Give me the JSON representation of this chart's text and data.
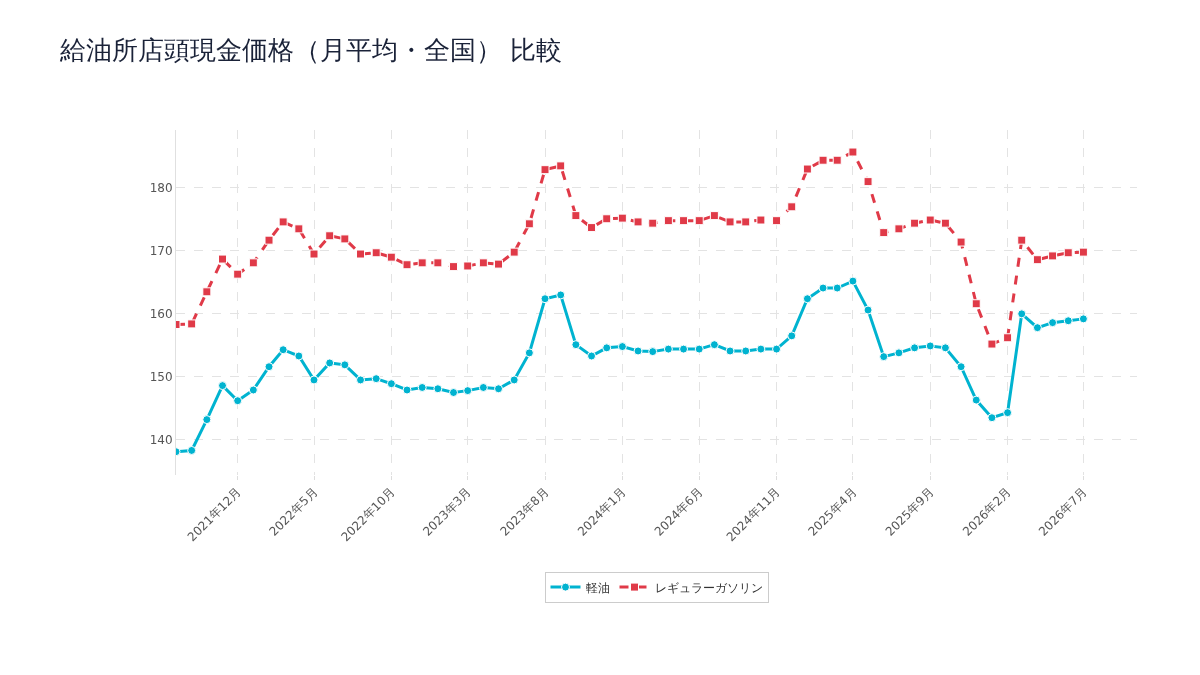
{
  "chart_data": {
    "type": "line",
    "title": "給油所店頭現金価格（月平均・全国） 比較",
    "x": [
      "2021-08",
      "2021-09",
      "2021-10",
      "2021-11",
      "2021-12",
      "2022-01",
      "2022-02",
      "2022-03",
      "2022-04",
      "2022-05",
      "2022-06",
      "2022-07",
      "2022-08",
      "2022-09",
      "2022-10",
      "2022-11",
      "2022-12",
      "2023-01",
      "2023-02",
      "2023-03",
      "2023-04",
      "2023-05",
      "2023-06",
      "2023-07",
      "2023-08",
      "2023-09",
      "2023-10",
      "2023-11",
      "2023-12",
      "2024-01",
      "2024-02",
      "2024-03",
      "2024-04",
      "2024-05",
      "2024-06",
      "2024-07",
      "2024-08",
      "2024-09",
      "2024-10",
      "2024-11",
      "2024-12",
      "2025-01",
      "2025-02",
      "2025-03",
      "2025-04",
      "2025-05",
      "2025-06",
      "2025-07",
      "2025-08",
      "2025-09",
      "2025-10",
      "2025-11",
      "2025-12",
      "2026-01",
      "2026-02",
      "2026-03",
      "2026-04",
      "2026-05",
      "2026-06",
      "2026-07"
    ],
    "series": [
      {
        "name": "軽油",
        "color": "#00b3d0",
        "marker": "circle",
        "line_style": "solid",
        "values": [
          138.1,
          138.3,
          143.2,
          148.6,
          146.2,
          147.9,
          151.6,
          154.3,
          153.3,
          149.5,
          152.2,
          151.9,
          149.5,
          149.7,
          148.9,
          147.9,
          148.3,
          148.1,
          147.5,
          147.8,
          148.3,
          148.1,
          149.5,
          153.8,
          162.4,
          163.0,
          155.1,
          153.3,
          154.6,
          154.8,
          154.1,
          154.0,
          154.4,
          154.4,
          154.4,
          155.1,
          154.1,
          154.1,
          154.4,
          154.4,
          156.5,
          162.4,
          164.1,
          164.1,
          165.2,
          160.6,
          153.2,
          153.8,
          154.6,
          154.9,
          154.6,
          151.6,
          146.3,
          143.5,
          144.3,
          160.0,
          157.8,
          158.6,
          158.9,
          159.2
        ]
      },
      {
        "name": "レギュラーガソリン",
        "color": "#e03a48",
        "marker": "square",
        "line_style": "dashed",
        "values": [
          158.3,
          158.4,
          163.5,
          168.7,
          166.3,
          168.1,
          171.7,
          174.6,
          173.5,
          169.5,
          172.4,
          171.9,
          169.5,
          169.7,
          169.0,
          167.8,
          168.1,
          168.1,
          167.5,
          167.6,
          168.1,
          167.9,
          169.8,
          174.3,
          182.9,
          183.5,
          175.6,
          173.7,
          175.1,
          175.2,
          174.6,
          174.4,
          174.8,
          174.8,
          174.8,
          175.6,
          174.6,
          174.6,
          174.9,
          174.8,
          177.0,
          183.0,
          184.4,
          184.4,
          185.7,
          181.0,
          172.9,
          173.5,
          174.4,
          174.9,
          174.4,
          171.4,
          161.6,
          155.2,
          156.2,
          171.7,
          168.6,
          169.2,
          169.7,
          169.8
        ]
      }
    ],
    "xlim": [
      "2021-08",
      "2026-10-15"
    ],
    "xticks": [
      {
        "value": "2021-12",
        "label": "2021年12月"
      },
      {
        "value": "2022-05",
        "label": "2022年5月"
      },
      {
        "value": "2022-10",
        "label": "2022年10月"
      },
      {
        "value": "2023-03",
        "label": "2023年3月"
      },
      {
        "value": "2023-08",
        "label": "2023年8月"
      },
      {
        "value": "2024-01",
        "label": "2024年1月"
      },
      {
        "value": "2024-06",
        "label": "2024年6月"
      },
      {
        "value": "2024-11",
        "label": "2024年11月"
      },
      {
        "value": "2025-04",
        "label": "2025年4月"
      },
      {
        "value": "2025-09",
        "label": "2025年9月"
      },
      {
        "value": "2026-02",
        "label": "2026年2月"
      },
      {
        "value": "2026-07",
        "label": "2026年7月"
      }
    ],
    "ylim": [
      134.4,
      189.2
    ],
    "yticks": [
      140,
      150,
      160,
      170,
      180
    ],
    "grid": true,
    "legend": "bottom"
  }
}
